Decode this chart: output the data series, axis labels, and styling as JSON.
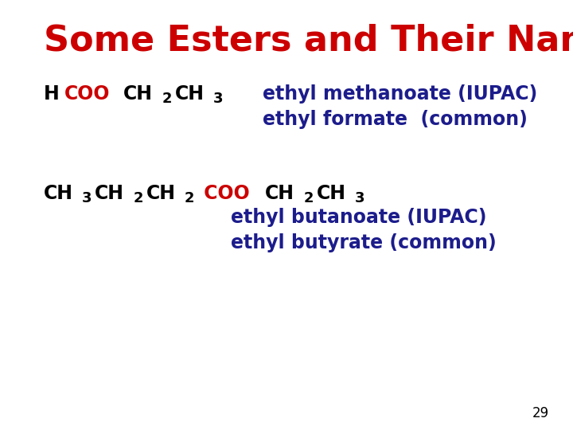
{
  "title": "Some Esters and Their Names",
  "title_color": "#CC0000",
  "title_fontsize": 32,
  "background_color": "#FFFFFF",
  "text_color_black": "#000000",
  "text_color_red": "#CC0000",
  "text_color_blue": "#1C1C8C",
  "name_fontsize": 17,
  "formula_fontsize": 17,
  "sub_fontsize": 13,
  "page_number": "29",
  "formula1_parts": [
    {
      "text": "H",
      "color": "#000000",
      "sub": false
    },
    {
      "text": "COO",
      "color": "#CC0000",
      "sub": false
    },
    {
      "text": "CH",
      "color": "#000000",
      "sub": false
    },
    {
      "text": "2",
      "color": "#000000",
      "sub": true
    },
    {
      "text": "CH",
      "color": "#000000",
      "sub": false
    },
    {
      "text": "3",
      "color": "#000000",
      "sub": true
    }
  ],
  "formula1_name1": "ethyl methanoate (IUPAC)",
  "formula1_name2": "ethyl formate  (common)",
  "formula2_parts": [
    {
      "text": "CH",
      "color": "#000000",
      "sub": false
    },
    {
      "text": "3",
      "color": "#000000",
      "sub": true
    },
    {
      "text": "CH",
      "color": "#000000",
      "sub": false
    },
    {
      "text": "2",
      "color": "#000000",
      "sub": true
    },
    {
      "text": "CH",
      "color": "#000000",
      "sub": false
    },
    {
      "text": "2",
      "color": "#000000",
      "sub": true
    },
    {
      "text": " COO",
      "color": "#CC0000",
      "sub": false
    },
    {
      "text": "CH",
      "color": "#000000",
      "sub": false
    },
    {
      "text": "2",
      "color": "#000000",
      "sub": true
    },
    {
      "text": "CH",
      "color": "#000000",
      "sub": false
    },
    {
      "text": "3",
      "color": "#000000",
      "sub": true
    }
  ],
  "formula2_name1": "ethyl butanoate (IUPAC)",
  "formula2_name2": "ethyl butyrate (common)"
}
